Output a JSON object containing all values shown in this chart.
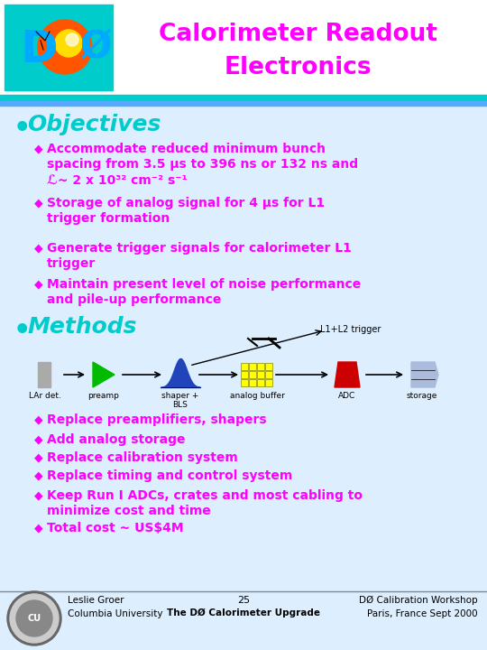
{
  "title_line1": "Calorimeter Readout",
  "title_line2": "Electronics",
  "title_color": "#FF00FF",
  "bg_color": "#DDEEFF",
  "header_bg": "#FFFFFF",
  "objectives_header": "Objectives",
  "objectives_color": "#00CCCC",
  "bullet_color": "#FF00FF",
  "objectives_bullets": [
    "Accommodate reduced minimum bunch\nspacing from 3.5 μs to 396 ns or 132 ns and\nℒ~ 2 x 10³² cm⁻² s⁻¹",
    "Storage of analog signal for 4 μs for L1\ntrigger formation",
    "Generate trigger signals for calorimeter L1\ntrigger",
    "Maintain present level of noise performance\nand pile-up performance"
  ],
  "methods_header": "Methods",
  "methods_color": "#00CCCC",
  "methods_bullets": [
    "Replace preamplifiers, shapers",
    "Add analog storage",
    "Replace calibration system",
    "Replace timing and control system",
    "Keep Run I ADCs, crates and most cabling to\nminimize cost and time",
    "Total cost ~ US$4M"
  ],
  "diagram_labels": [
    "LAr det.",
    "preamp",
    "shaper +\nBLS",
    "analog buffer",
    "ADC",
    "storage"
  ],
  "footer_left1": "Leslie Groer",
  "footer_left2": "Columbia University",
  "footer_center": "25",
  "footer_center_sub": "The DØ Calorimeter Upgrade",
  "footer_right1": "DØ Calibration Workshop",
  "footer_right2": "Paris, France Sept 2000"
}
